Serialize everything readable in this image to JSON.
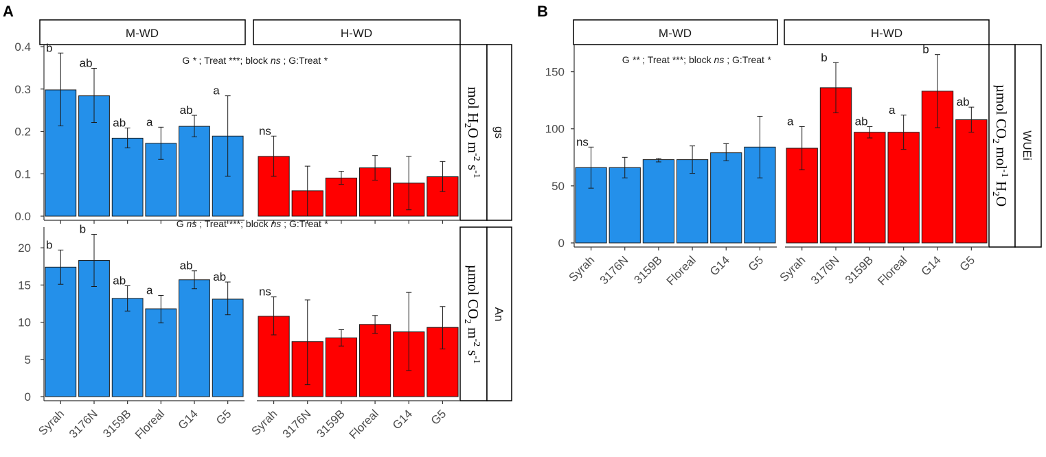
{
  "figure": {
    "colors": {
      "mwd": "#2490ea",
      "hwd": "#ff0000",
      "axis": "#333333",
      "text": "#1a1a1a"
    },
    "categories": [
      "Syrah",
      "3176N",
      "3159B",
      "Floreal",
      "G14",
      "G5"
    ],
    "strip_titles": [
      "M-WD",
      "H-WD"
    ]
  },
  "chart_data": [
    {
      "panel": "A",
      "type": "bar",
      "variable": "gs",
      "unit": {
        "main": "mol H",
        "sub1": "2",
        "mid": "O m",
        "sup1": "-2",
        "tail": " s",
        "sup2": "-1"
      },
      "stats": {
        "p1": "G ",
        "i1": "*",
        "p2": " ; Treat ***; block ",
        "i2": "ns",
        "p3": " ; G:Treat ",
        "i3": "*"
      },
      "ylim": [
        0,
        0.4
      ],
      "yticks": [
        "0.0",
        "0.1",
        "0.2",
        "0.3",
        "0.4"
      ],
      "series": [
        {
          "name": "M-WD",
          "values": [
            0.298,
            0.284,
            0.184,
            0.172,
            0.212,
            0.189
          ],
          "err_low": [
            0.213,
            0.221,
            0.161,
            0.134,
            0.187,
            0.094
          ],
          "err_high": [
            0.385,
            0.349,
            0.208,
            0.21,
            0.238,
            0.284
          ],
          "labels": [
            "b",
            "ab",
            "ab",
            "a",
            "ab",
            "a"
          ]
        },
        {
          "name": "H-WD",
          "values": [
            0.141,
            0.06,
            0.09,
            0.114,
            0.078,
            0.093
          ],
          "err_low": [
            0.094,
            0.0,
            0.075,
            0.085,
            0.015,
            0.058
          ],
          "err_high": [
            0.189,
            0.118,
            0.106,
            0.143,
            0.141,
            0.129
          ],
          "labels": [
            "ns",
            "",
            "",
            "",
            "",
            ""
          ]
        }
      ]
    },
    {
      "panel": "A",
      "type": "bar",
      "variable": "An",
      "unit": {
        "main": "µmol CO",
        "sub1": "2",
        "mid": " m",
        "sup1": "-2",
        "tail": " s",
        "sup2": "-1"
      },
      "stats": {
        "p1": "G ",
        "i1": "ns",
        "p2": " ; Treat ***; block ",
        "i2": "ns",
        "p3": " ; G:Treat ",
        "i3": "*"
      },
      "ylim": [
        0,
        22.5
      ],
      "yticks": [
        "0",
        "5",
        "10",
        "15",
        "20"
      ],
      "series": [
        {
          "name": "M-WD",
          "values": [
            17.4,
            18.3,
            13.2,
            11.8,
            15.7,
            13.1
          ],
          "err_low": [
            15.1,
            14.8,
            11.5,
            9.9,
            14.5,
            11.0
          ],
          "err_high": [
            19.7,
            21.8,
            14.9,
            13.6,
            16.9,
            15.4
          ],
          "labels": [
            "b",
            "b",
            "ab",
            "a",
            "ab",
            "ab"
          ]
        },
        {
          "name": "H-WD",
          "values": [
            10.8,
            7.4,
            7.9,
            9.7,
            8.7,
            9.3
          ],
          "err_low": [
            8.3,
            1.6,
            6.8,
            8.5,
            3.5,
            6.4
          ],
          "err_high": [
            13.4,
            13.0,
            9.0,
            10.9,
            14.0,
            12.1
          ],
          "labels": [
            "ns",
            "",
            "",
            "",
            "",
            ""
          ]
        }
      ]
    },
    {
      "panel": "B",
      "type": "bar",
      "variable": "WUEi",
      "unit": {
        "main": "µmol CO",
        "sub1": "2",
        "mid": " mol",
        "sup1": "-1",
        "tail": " H",
        "sub2": "2",
        "tail2": "O"
      },
      "stats": {
        "p1": "G ",
        "i1": "**",
        "p2": " ; Treat ***; block ",
        "i2": "ns",
        "p3": " ; G:Treat ",
        "i3": "*"
      },
      "ylim": [
        0,
        172
      ],
      "yticks": [
        "0",
        "50",
        "100",
        "150"
      ],
      "series": [
        {
          "name": "M-WD",
          "values": [
            66,
            66,
            73,
            73,
            79,
            84
          ],
          "err_low": [
            48,
            57,
            71,
            61,
            72,
            57
          ],
          "err_high": [
            84,
            75,
            74,
            85,
            87,
            111
          ],
          "labels": [
            "ns",
            "",
            "",
            "",
            "",
            ""
          ]
        },
        {
          "name": "H-WD",
          "values": [
            83,
            136,
            97,
            97,
            133,
            108
          ],
          "err_low": [
            64,
            114,
            92,
            82,
            101,
            97
          ],
          "err_high": [
            102,
            158,
            102,
            112,
            165,
            119
          ],
          "labels": [
            "a",
            "b",
            "ab",
            "a",
            "b",
            "ab"
          ]
        }
      ]
    }
  ]
}
